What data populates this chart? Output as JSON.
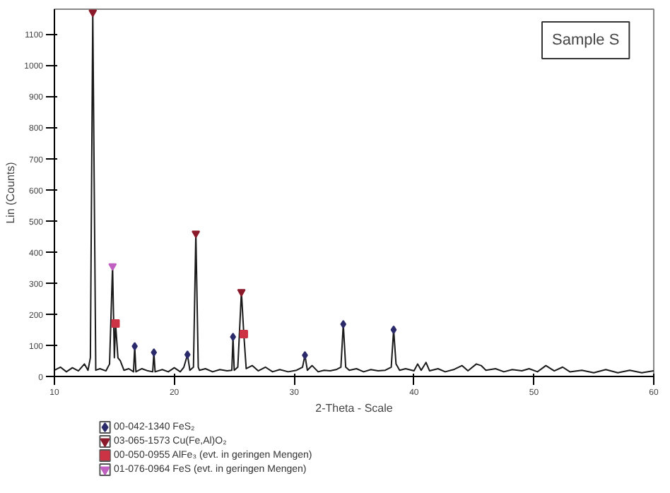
{
  "chart_data": {
    "type": "line",
    "xlabel": "2-Theta - Scale",
    "ylabel": "Lin (Counts)",
    "annotations": [
      "Sample S"
    ],
    "xlim": [
      10,
      60
    ],
    "xticks": [
      10,
      20,
      30,
      40,
      50,
      60
    ],
    "ylim": [
      0,
      1180
    ],
    "yticks": [
      0,
      100,
      200,
      300,
      400,
      500,
      600,
      700,
      800,
      900,
      1000,
      1100
    ],
    "grid": false,
    "legend": "bottom",
    "series": [
      {
        "color": "#1a1a1a",
        "line_style": "solid",
        "x": [
          10,
          10.5,
          11,
          11.5,
          12,
          12.5,
          12.8,
          13.0,
          13.2,
          13.45,
          13.8,
          14.3,
          14.6,
          14.85,
          15.0,
          15.1,
          15.3,
          15.5,
          15.8,
          16.2,
          16.6,
          16.7,
          16.8,
          17.3,
          17.8,
          18.2,
          18.3,
          18.4,
          19.0,
          19.5,
          20.0,
          20.5,
          20.8,
          21.1,
          21.3,
          21.6,
          21.8,
          22.0,
          22.1,
          22.6,
          23.2,
          23.8,
          24.4,
          24.8,
          24.9,
          25.0,
          25.3,
          25.6,
          25.8,
          26.0,
          26.5,
          27.0,
          27.6,
          28.2,
          28.8,
          29.5,
          30.2,
          30.7,
          30.9,
          31.1,
          31.5,
          32.0,
          32.5,
          33.0,
          33.5,
          33.9,
          34.1,
          34.3,
          34.6,
          35.2,
          35.8,
          36.4,
          37.0,
          37.6,
          38.1,
          38.3,
          38.5,
          38.8,
          39.3,
          40.0,
          40.3,
          40.6,
          41.0,
          41.3,
          42.0,
          42.6,
          43.3,
          44.0,
          44.5,
          45.2,
          45.6,
          46.0,
          46.8,
          47.5,
          48.2,
          49.0,
          49.6,
          50.3,
          51.0,
          51.7,
          52.4,
          53.0,
          54.0,
          55.0,
          56.0,
          57.0,
          58.0,
          59.0,
          60.0
        ],
        "values": [
          20,
          30,
          15,
          28,
          18,
          40,
          20,
          60,
          1170,
          20,
          25,
          18,
          40,
          355,
          60,
          170,
          60,
          50,
          20,
          25,
          15,
          97,
          15,
          25,
          18,
          15,
          77,
          15,
          22,
          15,
          28,
          15,
          30,
          70,
          20,
          30,
          460,
          30,
          20,
          25,
          15,
          22,
          18,
          20,
          127,
          20,
          30,
          272,
          136,
          25,
          35,
          18,
          30,
          15,
          22,
          15,
          20,
          30,
          68,
          20,
          35,
          15,
          20,
          18,
          22,
          30,
          168,
          30,
          20,
          25,
          15,
          22,
          18,
          20,
          30,
          150,
          40,
          20,
          25,
          18,
          40,
          20,
          45,
          18,
          25,
          15,
          22,
          35,
          18,
          40,
          35,
          20,
          25,
          15,
          22,
          18,
          25,
          15,
          35,
          18,
          30,
          15,
          20,
          12,
          22,
          12,
          20,
          12,
          18
        ]
      },
      {
        "type": "scatter",
        "name": "00-042-1340 FeS₂",
        "color": "#2b2b6b",
        "marker": "diamond",
        "x": [
          16.7,
          18.3,
          21.1,
          24.9,
          30.9,
          34.1,
          38.3
        ],
        "values": [
          97,
          77,
          70,
          127,
          68,
          168,
          150
        ]
      },
      {
        "type": "scatter",
        "name": "03-065-1573 Cu(Fe,Al)O₂",
        "color": "#8b1a2b",
        "marker": "triangle",
        "x": [
          13.2,
          21.8,
          25.6
        ],
        "values": [
          1170,
          460,
          272
        ]
      },
      {
        "type": "scatter",
        "name": "00-050-0955 AlFe₃ (evt. in geringen Mengen)",
        "color": "#cc3344",
        "marker": "square",
        "x": [
          15.1,
          25.8
        ],
        "values": [
          170,
          136
        ]
      },
      {
        "type": "scatter",
        "name": "01-076-0964 FeS (evt. in geringen Mengen)",
        "color": "#c060c0",
        "marker": "triangle",
        "x": [
          14.85
        ],
        "values": [
          355
        ]
      }
    ]
  }
}
